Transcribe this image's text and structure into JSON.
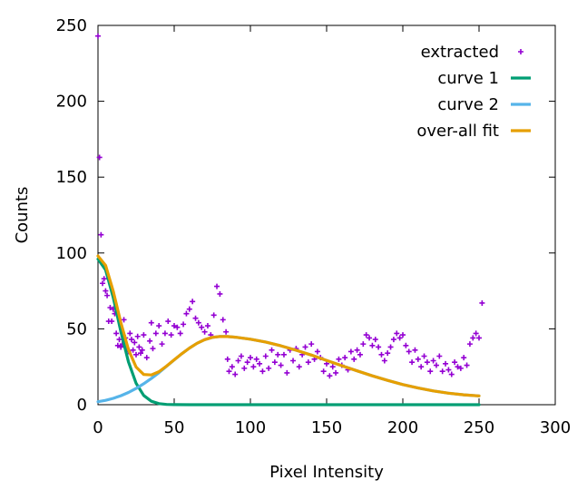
{
  "chart_data": {
    "type": "scatter",
    "title": "",
    "xlabel": "Pixel Intensity",
    "ylabel": "Counts",
    "xlim": [
      0,
      300
    ],
    "ylim": [
      0,
      250
    ],
    "x_ticks": [
      "0",
      "50",
      "100",
      "150",
      "200",
      "250",
      "300"
    ],
    "y_ticks": [
      "0",
      "50",
      "100",
      "150",
      "200",
      "250"
    ],
    "grid": false,
    "legend_position": "top-right",
    "series": [
      {
        "name": "extracted",
        "kind": "points",
        "marker": "+",
        "color": "#9400d3",
        "points": [
          [
            0,
            243
          ],
          [
            1,
            163
          ],
          [
            2,
            112
          ],
          [
            3,
            80
          ],
          [
            4,
            83
          ],
          [
            5,
            75
          ],
          [
            6,
            72
          ],
          [
            7,
            55
          ],
          [
            8,
            64
          ],
          [
            9,
            55
          ],
          [
            10,
            63
          ],
          [
            11,
            60
          ],
          [
            12,
            47
          ],
          [
            13,
            39
          ],
          [
            14,
            43
          ],
          [
            15,
            38
          ],
          [
            16,
            40
          ],
          [
            17,
            56
          ],
          [
            18,
            44
          ],
          [
            19,
            37
          ],
          [
            20,
            35
          ],
          [
            21,
            47
          ],
          [
            22,
            43
          ],
          [
            23,
            36
          ],
          [
            24,
            41
          ],
          [
            25,
            33
          ],
          [
            26,
            45
          ],
          [
            27,
            38
          ],
          [
            28,
            34
          ],
          [
            29,
            36
          ],
          [
            30,
            46
          ],
          [
            32,
            31
          ],
          [
            34,
            42
          ],
          [
            35,
            54
          ],
          [
            36,
            37
          ],
          [
            38,
            47
          ],
          [
            40,
            52
          ],
          [
            42,
            40
          ],
          [
            44,
            47
          ],
          [
            46,
            55
          ],
          [
            48,
            46
          ],
          [
            50,
            52
          ],
          [
            52,
            51
          ],
          [
            54,
            47
          ],
          [
            56,
            53
          ],
          [
            58,
            60
          ],
          [
            60,
            63
          ],
          [
            62,
            68
          ],
          [
            64,
            57
          ],
          [
            66,
            54
          ],
          [
            68,
            51
          ],
          [
            70,
            48
          ],
          [
            72,
            52
          ],
          [
            74,
            46
          ],
          [
            76,
            59
          ],
          [
            78,
            78
          ],
          [
            80,
            73
          ],
          [
            82,
            56
          ],
          [
            84,
            48
          ],
          [
            85,
            30
          ],
          [
            86,
            22
          ],
          [
            88,
            25
          ],
          [
            90,
            20
          ],
          [
            92,
            29
          ],
          [
            94,
            32
          ],
          [
            96,
            24
          ],
          [
            98,
            28
          ],
          [
            100,
            31
          ],
          [
            102,
            25
          ],
          [
            104,
            30
          ],
          [
            106,
            27
          ],
          [
            108,
            22
          ],
          [
            110,
            32
          ],
          [
            112,
            24
          ],
          [
            114,
            36
          ],
          [
            116,
            28
          ],
          [
            118,
            33
          ],
          [
            120,
            26
          ],
          [
            122,
            33
          ],
          [
            124,
            21
          ],
          [
            126,
            36
          ],
          [
            128,
            29
          ],
          [
            130,
            37
          ],
          [
            132,
            25
          ],
          [
            134,
            33
          ],
          [
            136,
            38
          ],
          [
            138,
            28
          ],
          [
            140,
            40
          ],
          [
            142,
            30
          ],
          [
            144,
            35
          ],
          [
            146,
            31
          ],
          [
            148,
            22
          ],
          [
            150,
            27
          ],
          [
            152,
            19
          ],
          [
            154,
            25
          ],
          [
            156,
            21
          ],
          [
            158,
            30
          ],
          [
            160,
            26
          ],
          [
            162,
            31
          ],
          [
            164,
            23
          ],
          [
            166,
            35
          ],
          [
            168,
            30
          ],
          [
            170,
            36
          ],
          [
            172,
            33
          ],
          [
            174,
            40
          ],
          [
            176,
            46
          ],
          [
            178,
            44
          ],
          [
            180,
            39
          ],
          [
            182,
            43
          ],
          [
            184,
            38
          ],
          [
            186,
            33
          ],
          [
            188,
            29
          ],
          [
            190,
            34
          ],
          [
            192,
            38
          ],
          [
            194,
            43
          ],
          [
            196,
            47
          ],
          [
            198,
            44
          ],
          [
            200,
            46
          ],
          [
            202,
            39
          ],
          [
            204,
            35
          ],
          [
            206,
            28
          ],
          [
            208,
            36
          ],
          [
            210,
            30
          ],
          [
            212,
            25
          ],
          [
            214,
            32
          ],
          [
            216,
            28
          ],
          [
            218,
            22
          ],
          [
            220,
            29
          ],
          [
            222,
            26
          ],
          [
            224,
            32
          ],
          [
            226,
            22
          ],
          [
            228,
            27
          ],
          [
            230,
            23
          ],
          [
            232,
            20
          ],
          [
            234,
            28
          ],
          [
            236,
            25
          ],
          [
            238,
            24
          ],
          [
            240,
            31
          ],
          [
            242,
            26
          ],
          [
            244,
            40
          ],
          [
            246,
            44
          ],
          [
            248,
            47
          ],
          [
            250,
            44
          ],
          [
            252,
            67
          ]
        ]
      },
      {
        "name": "curve 1",
        "kind": "line",
        "color": "#009e73",
        "points": [
          [
            0,
            96.0
          ],
          [
            5,
            88.9
          ],
          [
            10,
            70.7
          ],
          [
            15,
            48.2
          ],
          [
            20,
            28.2
          ],
          [
            25,
            14.1
          ],
          [
            30,
            6.1
          ],
          [
            35,
            2.3
          ],
          [
            40,
            0.7
          ],
          [
            45,
            0.2
          ],
          [
            50,
            0.05
          ],
          [
            60,
            0
          ],
          [
            100,
            0
          ],
          [
            150,
            0
          ],
          [
            200,
            0
          ],
          [
            250,
            0
          ]
        ]
      },
      {
        "name": "curve 2",
        "kind": "line",
        "color": "#56b4e9",
        "points": [
          [
            0,
            2.0
          ],
          [
            5,
            2.9
          ],
          [
            10,
            4.2
          ],
          [
            15,
            5.9
          ],
          [
            20,
            8.1
          ],
          [
            25,
            10.7
          ],
          [
            30,
            13.8
          ],
          [
            35,
            17.3
          ],
          [
            40,
            21.1
          ],
          [
            45,
            25.3
          ],
          [
            50,
            29.5
          ],
          [
            55,
            33.6
          ],
          [
            60,
            37.3
          ],
          [
            65,
            40.5
          ],
          [
            70,
            42.9
          ],
          [
            75,
            44.4
          ],
          [
            80,
            45.0
          ],
          [
            85,
            44.9
          ],
          [
            90,
            44.5
          ],
          [
            100,
            43.2
          ],
          [
            110,
            41.3
          ],
          [
            120,
            38.8
          ],
          [
            130,
            35.9
          ],
          [
            140,
            32.7
          ],
          [
            150,
            29.2
          ],
          [
            160,
            25.7
          ],
          [
            170,
            22.3
          ],
          [
            180,
            19.0
          ],
          [
            190,
            16.0
          ],
          [
            200,
            13.3
          ],
          [
            210,
            11.0
          ],
          [
            220,
            9.1
          ],
          [
            230,
            7.6
          ],
          [
            240,
            6.5
          ],
          [
            250,
            5.8
          ]
        ]
      },
      {
        "name": "over-all fit",
        "kind": "line",
        "color": "#e69f00",
        "points": [
          [
            0,
            98.0
          ],
          [
            5,
            91.8
          ],
          [
            10,
            74.9
          ],
          [
            15,
            54.1
          ],
          [
            20,
            36.3
          ],
          [
            25,
            24.8
          ],
          [
            30,
            19.9
          ],
          [
            35,
            19.6
          ],
          [
            40,
            21.8
          ],
          [
            45,
            25.5
          ],
          [
            50,
            29.6
          ],
          [
            55,
            33.6
          ],
          [
            60,
            37.3
          ],
          [
            65,
            40.5
          ],
          [
            70,
            42.9
          ],
          [
            75,
            44.4
          ],
          [
            80,
            45.0
          ],
          [
            85,
            44.9
          ],
          [
            90,
            44.5
          ],
          [
            100,
            43.2
          ],
          [
            110,
            41.3
          ],
          [
            120,
            38.8
          ],
          [
            130,
            35.9
          ],
          [
            140,
            32.7
          ],
          [
            150,
            29.2
          ],
          [
            160,
            25.7
          ],
          [
            170,
            22.3
          ],
          [
            180,
            19.0
          ],
          [
            190,
            16.0
          ],
          [
            200,
            13.3
          ],
          [
            210,
            11.0
          ],
          [
            220,
            9.1
          ],
          [
            230,
            7.6
          ],
          [
            240,
            6.5
          ],
          [
            250,
            5.8
          ]
        ]
      }
    ]
  }
}
